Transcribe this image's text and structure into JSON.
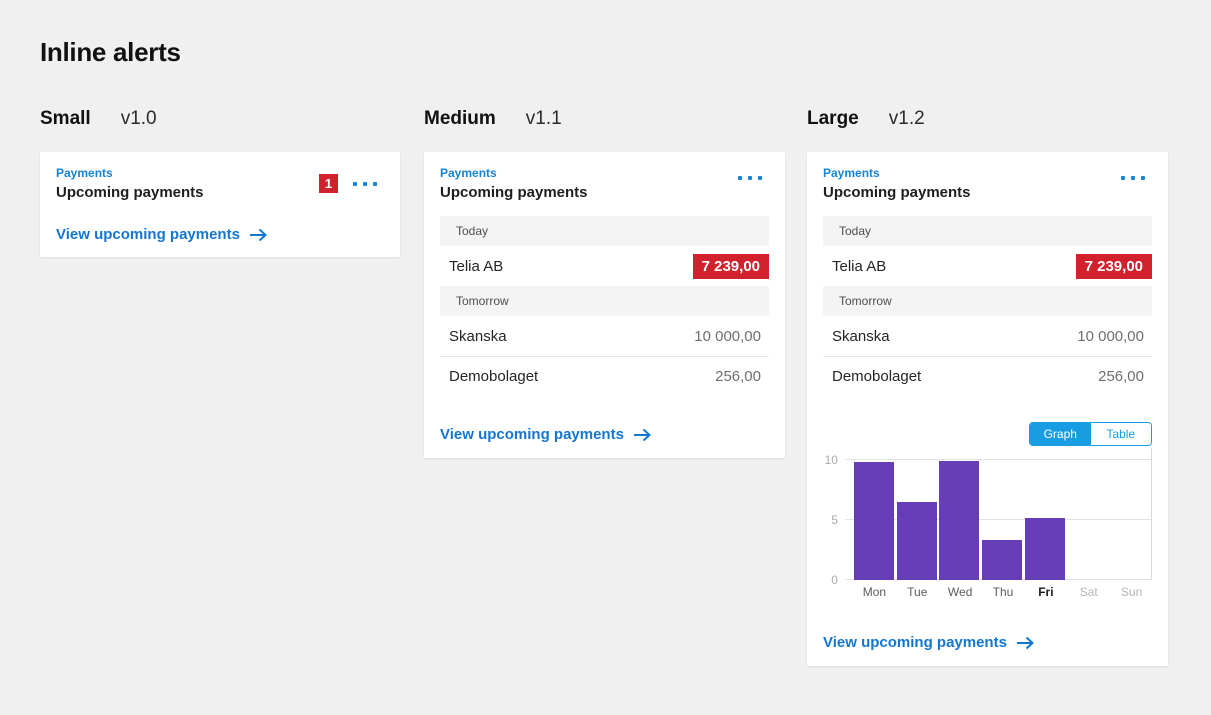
{
  "page": {
    "title": "Inline alerts"
  },
  "colors": {
    "background": "#f0f0f0",
    "accent_blue": "#1377d0",
    "eyebrow_blue": "#1685d5",
    "toggle_blue": "#189de2",
    "alert_red": "#d0212d",
    "bar_purple": "#663db6"
  },
  "cards": [
    {
      "size_label": "Small",
      "version": "v1.0",
      "eyebrow": "Payments",
      "title": "Upcoming payments",
      "alert_count": "1",
      "menu_icon": "ellipsis-icon",
      "link_label": "View upcoming payments"
    },
    {
      "size_label": "Medium",
      "version": "v1.1",
      "eyebrow": "Payments",
      "title": "Upcoming payments",
      "menu_icon": "ellipsis-icon",
      "sections": [
        {
          "header": "Today",
          "rows": [
            {
              "name": "Telia AB",
              "amount": "7 239,00",
              "alert": true
            }
          ]
        },
        {
          "header": "Tomorrow",
          "rows": [
            {
              "name": "Skanska",
              "amount": "10 000,00",
              "alert": false
            },
            {
              "name": "Demobolaget",
              "amount": "256,00",
              "alert": false
            }
          ]
        }
      ],
      "link_label": "View upcoming payments"
    },
    {
      "size_label": "Large",
      "version": "v1.2",
      "eyebrow": "Payments",
      "title": "Upcoming payments",
      "menu_icon": "ellipsis-icon",
      "sections": [
        {
          "header": "Today",
          "rows": [
            {
              "name": "Telia AB",
              "amount": "7 239,00",
              "alert": true
            }
          ]
        },
        {
          "header": "Tomorrow",
          "rows": [
            {
              "name": "Skanska",
              "amount": "10 000,00",
              "alert": false
            },
            {
              "name": "Demobolaget",
              "amount": "256,00",
              "alert": false
            }
          ]
        }
      ],
      "toggle": {
        "options": [
          "Graph",
          "Table"
        ],
        "selected": "Graph"
      },
      "link_label": "View upcoming payments"
    }
  ],
  "chart_data": {
    "type": "bar",
    "title": "",
    "xlabel": "",
    "ylabel": "",
    "categories": [
      "Mon",
      "Tue",
      "Wed",
      "Thu",
      "Fri",
      "Sat",
      "Sun"
    ],
    "values": [
      9.8,
      6.5,
      9.9,
      3.3,
      5.2,
      0,
      0
    ],
    "yticks": [
      0,
      5,
      10
    ],
    "ylim": [
      0,
      11
    ],
    "grid": true,
    "legend": "none",
    "emphasized_category": "Fri",
    "muted_categories": [
      "Sat",
      "Sun"
    ],
    "bar_color": "#663db6"
  }
}
